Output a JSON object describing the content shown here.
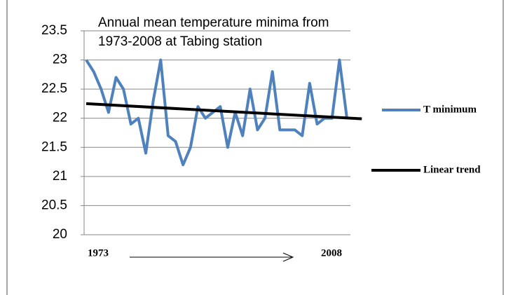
{
  "chart_data": {
    "type": "line",
    "title": [
      "Annual mean temperature minima from",
      "1973-2008 at Tabing station"
    ],
    "x": [
      1973,
      1974,
      1975,
      1976,
      1977,
      1978,
      1979,
      1980,
      1981,
      1982,
      1983,
      1984,
      1985,
      1986,
      1987,
      1988,
      1989,
      1990,
      1991,
      1992,
      1993,
      1994,
      1995,
      1996,
      1997,
      1998,
      1999,
      2000,
      2001,
      2002,
      2003,
      2004,
      2005,
      2006,
      2007,
      2008
    ],
    "xlim": [
      1973,
      2008
    ],
    "xticks": [
      1973,
      2008
    ],
    "ylim": [
      20,
      23.5
    ],
    "yticks": [
      20,
      20.5,
      21,
      21.5,
      22,
      22.5,
      23,
      23.5
    ],
    "grid": true,
    "series": [
      {
        "name": "T minimum",
        "color": "#4f81bd",
        "values": [
          23.0,
          22.8,
          22.5,
          22.1,
          22.7,
          22.5,
          21.9,
          22.0,
          21.4,
          22.3,
          23.0,
          21.7,
          21.6,
          21.2,
          21.5,
          22.2,
          22.0,
          22.1,
          22.2,
          21.5,
          22.1,
          21.7,
          22.5,
          21.8,
          22.0,
          22.8,
          21.8,
          21.8,
          21.8,
          21.7,
          22.6,
          21.9,
          22.0,
          22.0,
          23.0,
          22.0
        ]
      },
      {
        "name": "Linear trend",
        "color": "#000000",
        "x": [
          1973,
          2010
        ],
        "values": [
          22.25,
          21.99
        ]
      }
    ]
  }
}
